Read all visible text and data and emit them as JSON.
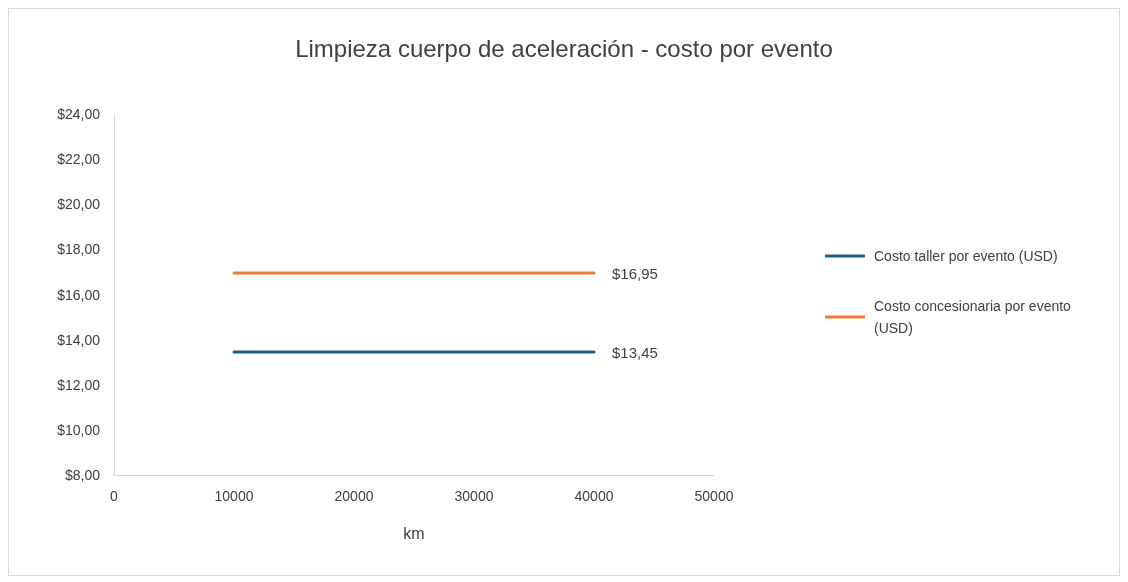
{
  "chart_data": {
    "type": "line",
    "title": "Limpieza cuerpo de aceleración - costo por evento",
    "xlabel": "km",
    "x": [
      10000,
      40000
    ],
    "series": [
      {
        "name": "Costo taller por evento (USD)",
        "color": "#1f5f8b",
        "values": [
          13.45,
          13.45
        ],
        "value_labels": [
          null,
          "$13,45"
        ]
      },
      {
        "name": "Costo concesionaria por evento (USD)",
        "color": "#f07a3a",
        "values": [
          16.95,
          16.95
        ],
        "value_labels": [
          null,
          "$16,95"
        ]
      }
    ],
    "xlim": [
      0,
      50000
    ],
    "xticks": [
      0,
      10000,
      20000,
      30000,
      40000,
      50000
    ],
    "ylim": [
      8,
      24
    ],
    "yticks": [
      {
        "value": 8,
        "label": "$8,00"
      },
      {
        "value": 10,
        "label": "$10,00"
      },
      {
        "value": 12,
        "label": "$12,00"
      },
      {
        "value": 14,
        "label": "$14,00"
      },
      {
        "value": 16,
        "label": "$16,00"
      },
      {
        "value": 18,
        "label": "$18,00"
      },
      {
        "value": 20,
        "label": "$20,00"
      },
      {
        "value": 22,
        "label": "$22,00"
      },
      {
        "value": 24,
        "label": "$24,00"
      }
    ],
    "grid": false,
    "legend": "right",
    "marker": "none",
    "line_style": "solid"
  }
}
